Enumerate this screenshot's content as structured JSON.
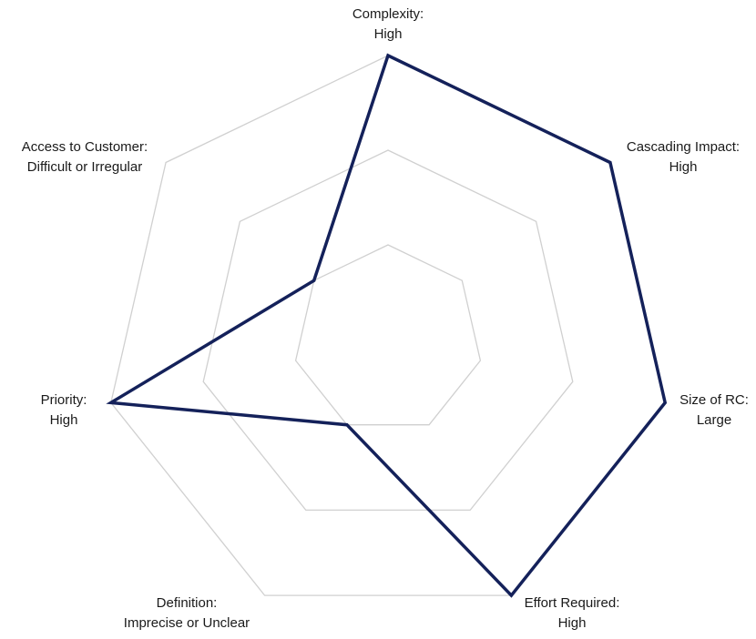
{
  "chart_data": {
    "type": "radar",
    "title": "",
    "axes": [
      {
        "line1": "Complexity:",
        "line2": "High"
      },
      {
        "line1": "Cascading Impact:",
        "line2": "High"
      },
      {
        "line1": "Size of RC:",
        "line2": "Large"
      },
      {
        "line1": "Effort Required:",
        "line2": "High"
      },
      {
        "line1": "Definition:",
        "line2": "Imprecise or Unclear"
      },
      {
        "line1": "Priority:",
        "line2": "High"
      },
      {
        "line1": "Access to Customer:",
        "line2": "Difficult or Irregular"
      }
    ],
    "rings": 3,
    "range": [
      0,
      3
    ],
    "series": [
      {
        "values": [
          3,
          3,
          3,
          3,
          1,
          3,
          1
        ],
        "color": "#14215a"
      }
    ],
    "grid": true,
    "grid_color": "#d0d0d0",
    "legend": "none"
  }
}
